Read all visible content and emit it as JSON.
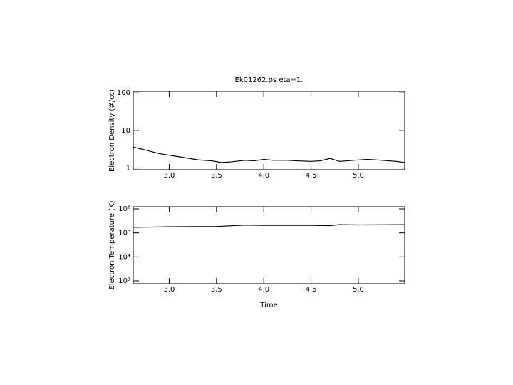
{
  "chart_data": [
    {
      "type": "line",
      "title": "Ek01262.ps    eta=1.",
      "y_label": "Electron Density (#/cc)",
      "log_y": true,
      "xlim": [
        2.62,
        5.49
      ],
      "ylim": [
        0.9,
        110
      ],
      "xticks": [
        {
          "value": 3,
          "label": "3.0"
        },
        3.5,
        {
          "value": 4,
          "label": "4.0"
        },
        4.5,
        {
          "value": 5,
          "label": "5.0"
        }
      ],
      "yticks": [
        1,
        10,
        100
      ],
      "x": [
        2.62,
        2.75,
        2.9,
        3.1,
        3.3,
        3.45,
        3.55,
        3.65,
        3.8,
        3.9,
        4.0,
        4.1,
        4.25,
        4.35,
        4.5,
        4.6,
        4.7,
        4.8,
        4.95,
        5.1,
        5.25,
        5.4,
        5.49
      ],
      "series": [
        {
          "color": "#000000",
          "values": [
            3.6,
            3.0,
            2.4,
            2.0,
            1.65,
            1.55,
            1.4,
            1.45,
            1.6,
            1.55,
            1.7,
            1.6,
            1.6,
            1.55,
            1.5,
            1.55,
            1.8,
            1.5,
            1.6,
            1.7,
            1.6,
            1.5,
            1.4
          ]
        }
      ]
    },
    {
      "type": "line",
      "y_label": "Electron Temperature (K)",
      "x_label": "Time",
      "log_y": true,
      "xlim": [
        2.62,
        5.49
      ],
      "ylim": [
        760,
        1230000
      ],
      "xticks": [
        {
          "value": 3,
          "label": "3.0"
        },
        3.5,
        {
          "value": 4,
          "label": "4.0"
        },
        4.5,
        {
          "value": 5,
          "label": "5.0"
        }
      ],
      "yticks": [
        {
          "value": 1000,
          "label": "10³"
        },
        {
          "value": 10000,
          "label": "10⁴"
        },
        {
          "value": 100000,
          "label": "10⁵"
        },
        {
          "value": 1000000,
          "label": "10⁶"
        }
      ],
      "x": [
        2.62,
        3.0,
        3.5,
        3.8,
        4.0,
        4.5,
        4.7,
        4.8,
        5.0,
        5.49
      ],
      "series": [
        {
          "color": "#000000",
          "values": [
            170000,
            180000,
            185000,
            210000,
            205000,
            205000,
            200000,
            220000,
            215000,
            220000
          ]
        }
      ]
    }
  ]
}
